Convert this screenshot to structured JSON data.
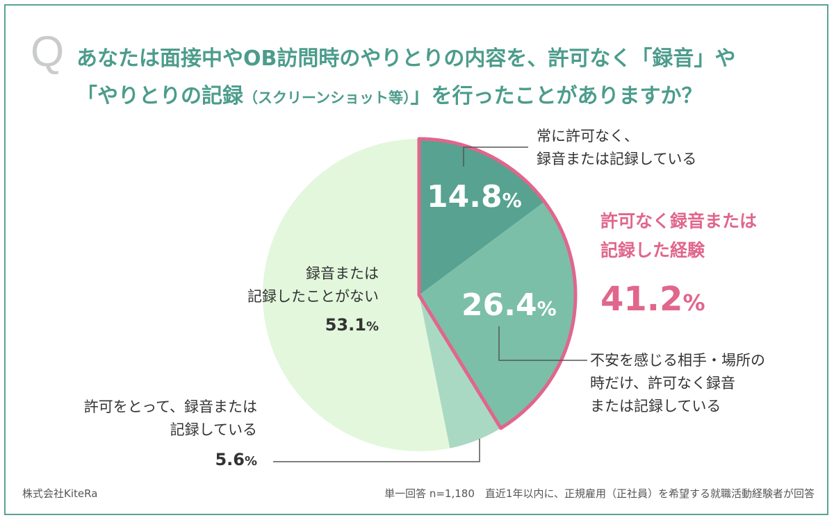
{
  "question": {
    "marker": "Q",
    "line1": "あなたは面接中やOB訪問時のやりとりの内容を、許可なく「録音」や",
    "line2_main": "「やりとりの記録",
    "line2_small": "（スクリーンショット等）",
    "line2_end": "」を行ったことがありますか？"
  },
  "chart_data": {
    "type": "pie",
    "start": "12 o'clock, clockwise",
    "slices": [
      {
        "label": "常に許可なく、録音または記録している",
        "value": 14.8,
        "color": "#57a290"
      },
      {
        "label": "不安を感じる相手・場所の時だけ、許可なく録音または記録している",
        "value": 26.4,
        "color": "#7bbfa9"
      },
      {
        "label": "許可をとって、録音または記録している",
        "value": 5.6,
        "color": "#a9d9c3"
      },
      {
        "label": "録音または記録したことがない",
        "value": 53.1,
        "color": "#e2f7dc"
      }
    ],
    "highlight_group": {
      "label": "許可なく録音または記録した経験",
      "value": 41.2,
      "outline_color": "#e0668c"
    }
  },
  "labels": {
    "always": {
      "line1": "常に許可なく、",
      "line2": "録音または記録している",
      "pct_num": "14.8",
      "pct_unit": "%"
    },
    "sometimes": {
      "line1": "不安を感じる相手・場所の",
      "line2": "時だけ、許可なく録音",
      "line3": "または記録している",
      "pct_num": "26.4",
      "pct_unit": "%"
    },
    "permitted": {
      "line1": "許可をとって、録音または",
      "line2": "記録している",
      "pct_num": "5.6",
      "pct_unit": "%"
    },
    "never": {
      "line1": "録音または",
      "line2": "記録したことがない",
      "pct_num": "53.1",
      "pct_unit": "%"
    }
  },
  "highlight": {
    "line1": "許可なく録音または",
    "line2": "記録した経験",
    "pct_num": "41.2",
    "pct_unit": "%"
  },
  "footer": {
    "company": "株式会社KiteRa",
    "note": "単一回答 n=1,180　直近1年以内に、正規雇用（正社員）を希望する就職活動経験者が回答"
  }
}
